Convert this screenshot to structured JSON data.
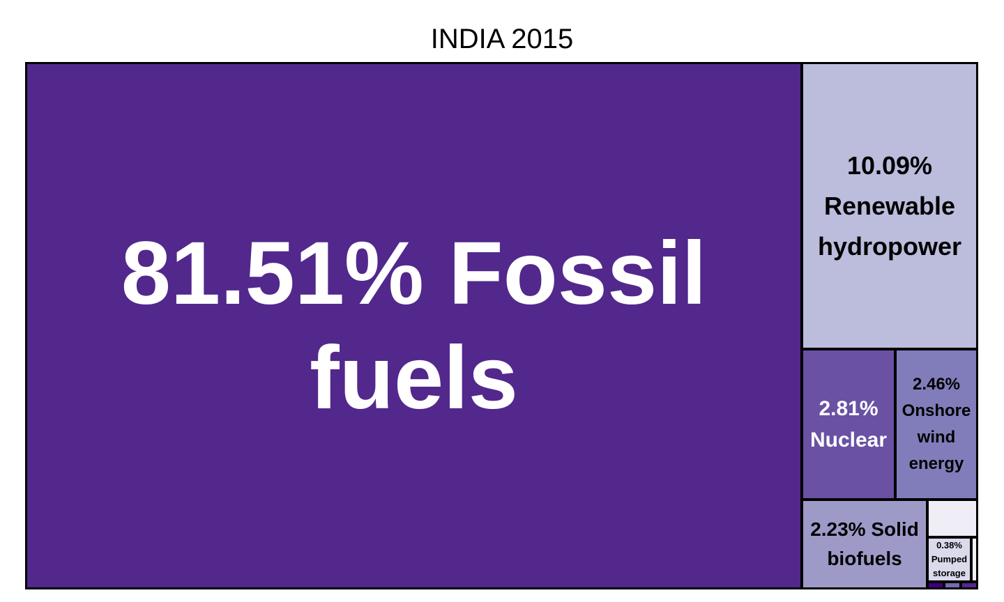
{
  "chart_data": {
    "type": "treemap",
    "title": "INDIA 2015",
    "unit": "%",
    "items": [
      {
        "label": "81.51% Fossil fuels",
        "name": "Fossil fuels",
        "value": 81.51,
        "color": "#52288c",
        "text_color": "#ffffff"
      },
      {
        "label": "10.09% Renewable hydropower",
        "name": "Renewable hydropower",
        "value": 10.09,
        "color": "#bcbddc",
        "text_color": "#000000"
      },
      {
        "label": "2.81% Nuclear",
        "name": "Nuclear",
        "value": 2.81,
        "color": "#6a51a3",
        "text_color": "#ffffff"
      },
      {
        "label": "2.46% Onshore wind energy",
        "name": "Onshore wind energy",
        "value": 2.46,
        "color": "#807dba",
        "text_color": "#000000"
      },
      {
        "label": "2.23% Solid biofuels",
        "name": "Solid biofuels",
        "value": 2.23,
        "color": "#9e9ac8",
        "text_color": "#000000"
      },
      {
        "label": "",
        "name": "",
        "value": 0.5,
        "color": "#efedf5",
        "text_color": "#000000"
      },
      {
        "label": "0.38% Pumped storage",
        "name": "Pumped storage",
        "value": 0.38,
        "color": "#dadaeb",
        "text_color": "#000000"
      },
      {
        "label": "",
        "name": "",
        "value": 0.02,
        "color": "#f2f0f7",
        "text_color": "#000000"
      },
      {
        "label": "",
        "name": "",
        "value": 0.01,
        "color": "#3f007d",
        "text_color": "#ffffff"
      },
      {
        "label": "",
        "name": "",
        "value": 0.01,
        "color": "#756bb1",
        "text_color": "#ffffff"
      },
      {
        "label": "",
        "name": "",
        "value": 0.01,
        "color": "#54278f",
        "text_color": "#ffffff"
      }
    ]
  }
}
